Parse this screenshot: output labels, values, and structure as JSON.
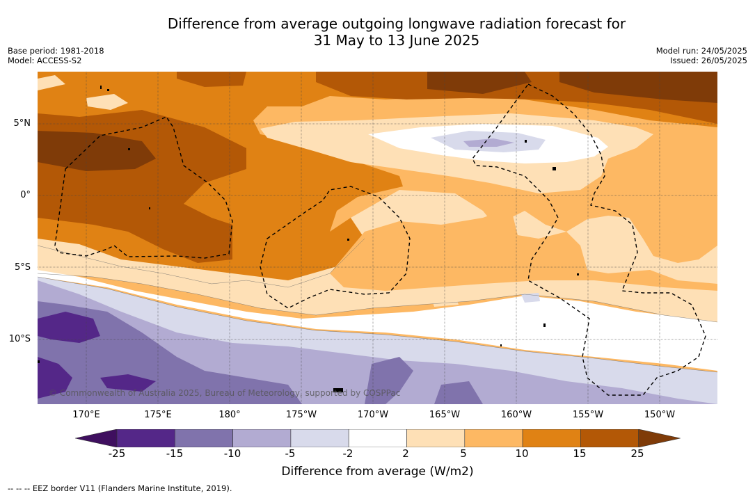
{
  "title_line1": "Difference from average outgoing longwave radiation forecast for",
  "title_line2": "31 May to 13 June 2025",
  "base_period": "Base period: 1981-2018",
  "model": "Model: ACCESS-S2",
  "model_run": "Model run: 24/05/2025",
  "issued": "Issued: 26/05/2025",
  "lat_labels": [
    "5°N",
    "0°",
    "5°S",
    "10°S"
  ],
  "lon_labels": [
    "170°E",
    "175°E",
    "180°",
    "175°W",
    "170°W",
    "165°W",
    "160°W",
    "155°W",
    "150°W"
  ],
  "copyright": "© Commonwealth of Australia 2025, Bureau of Meteorology, supported by COSPPac",
  "colorbar": {
    "labels": [
      "-25",
      "-15",
      "-10",
      "-5",
      "-2",
      "2",
      "5",
      "10",
      "15",
      "25"
    ],
    "colors": [
      "#3f0f5f",
      "#542788",
      "#8073ac",
      "#b2abd2",
      "#d8daeb",
      "#ffffff",
      "#fee0b6",
      "#fdb863",
      "#e08214",
      "#b35806",
      "#7f3b08"
    ],
    "title": "Difference from average (W/m2)"
  },
  "legend_footer": "--  --  -- EEZ border V11 (Flanders Marine Institute, 2019)."
}
